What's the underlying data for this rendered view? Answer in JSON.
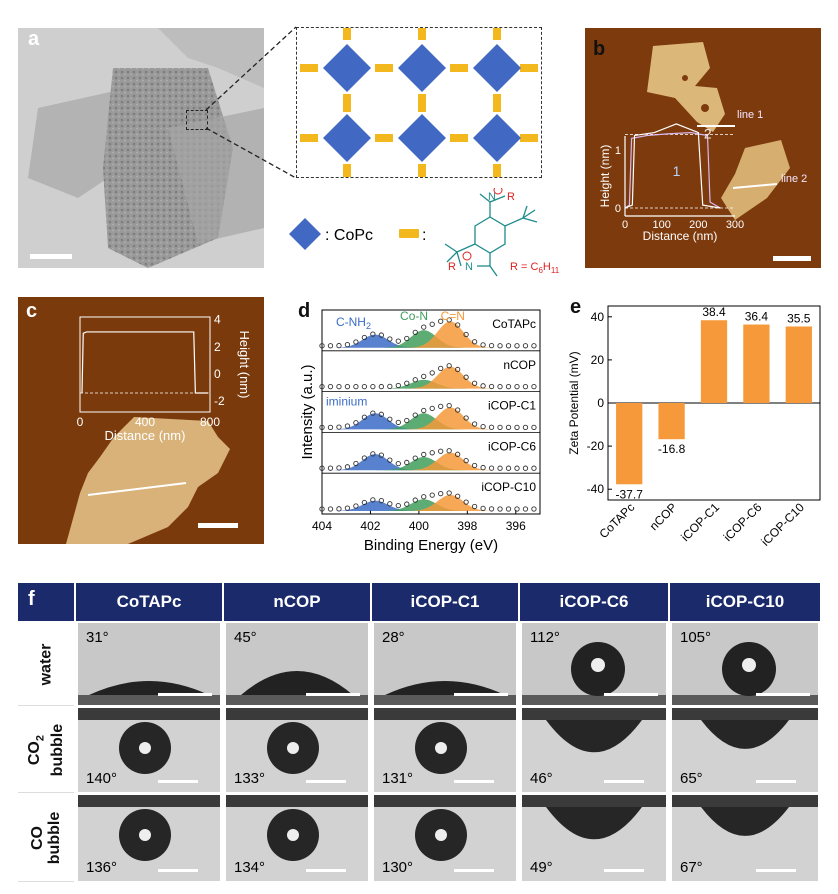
{
  "panel_labels": {
    "a": "a",
    "b": "b",
    "c": "c",
    "d": "d",
    "e": "e",
    "f": "f"
  },
  "legend_a": {
    "copc": ": CoPc",
    "linker": ":",
    "r_def": "R = C",
    "r_sub": "6",
    "r_sub2": "H",
    "r_sub3": "11",
    "r": "R"
  },
  "panel_b": {
    "line1": "line 1",
    "line2": "line 2",
    "curve1": "1",
    "curve2": "2",
    "xlabel": "Distance (nm)",
    "ylabel": "Height (nm)",
    "xticks": [
      "0",
      "100",
      "200",
      "300"
    ],
    "yticks": [
      "0",
      "1"
    ]
  },
  "panel_c": {
    "xlabel": "Distance (nm)",
    "ylabel": "Height (nm)",
    "xticks": [
      "0",
      "400",
      "800"
    ],
    "yticks": [
      "4",
      "2",
      "0",
      "-2"
    ]
  },
  "panel_d": {
    "xlabel": "Binding Energy (eV)",
    "ylabel": "Intensity (a.u.)",
    "xticks": [
      "404",
      "402",
      "400",
      "398",
      "396"
    ],
    "peaks": {
      "cnh2": "C-NH",
      "cnh2_sub": "2",
      "con": "Co-N",
      "cn": "C=N",
      "iminium": "iminium"
    },
    "samples": [
      "CoTAPc",
      "nCOP",
      "iCOP-C1",
      "iCOP-C6",
      "iCOP-C10"
    ]
  },
  "chart_data": {
    "type": "bar",
    "categories": [
      "CoTAPc",
      "nCOP",
      "iCOP-C1",
      "iCOP-C6",
      "iCOP-C10"
    ],
    "values": [
      -37.7,
      -16.8,
      38.4,
      36.4,
      35.5
    ],
    "value_labels": [
      "-37.7",
      "-16.8",
      "38.4",
      "36.4",
      "35.5"
    ],
    "ylabel": "Zeta Potential (mV)",
    "ylim": [
      -45,
      45
    ],
    "yticks": [
      "40",
      "20",
      "0",
      "-20",
      "-40"
    ],
    "color": "#f5993a"
  },
  "panel_f": {
    "columns": [
      "CoTAPc",
      "nCOP",
      "iCOP-C1",
      "iCOP-C6",
      "iCOP-C10"
    ],
    "rows": [
      {
        "label": "water",
        "angles": [
          "31°",
          "45°",
          "28°",
          "112°",
          "105°"
        ]
      },
      {
        "label_main": "CO",
        "label_sub": "2",
        "label_second": "bubble",
        "angles": [
          "140°",
          "133°",
          "131°",
          "46°",
          "65°"
        ]
      },
      {
        "label_main": "CO",
        "label_second": "bubble",
        "angles": [
          "136°",
          "134°",
          "130°",
          "49°",
          "67°"
        ]
      }
    ]
  },
  "colors": {
    "navy": "#1b2a6b",
    "orange": "#f5993a",
    "blue": "#3b6cc7",
    "green": "#3f9e5c",
    "diamond": "#4169c4",
    "linker": "#f2b81d"
  }
}
